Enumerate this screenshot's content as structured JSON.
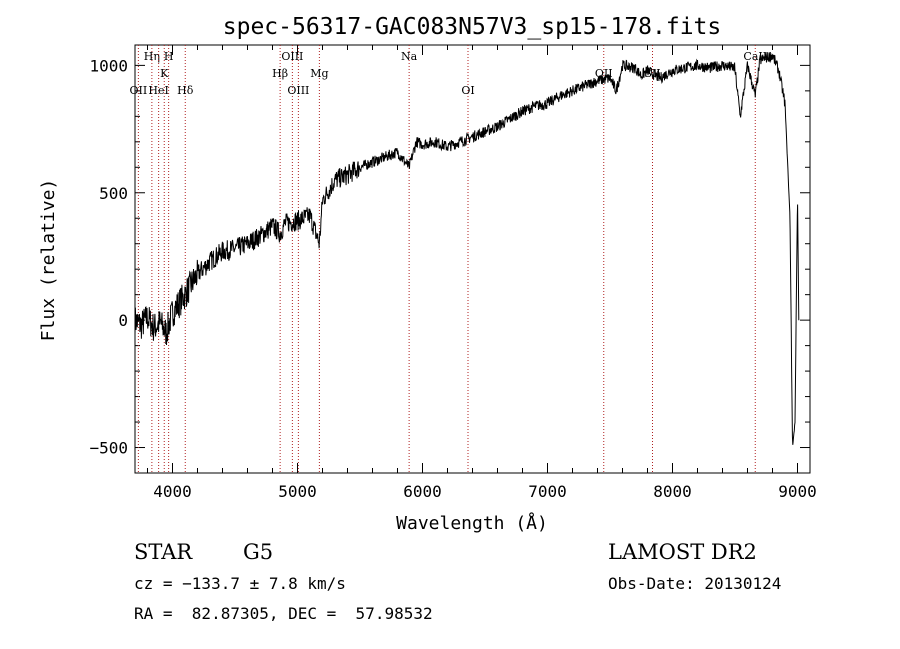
{
  "chart_data": {
    "type": "line",
    "title": "spec-56317-GAC083N57V3_sp15-178.fits",
    "xlabel": "Wavelength (Å)",
    "ylabel": "Flux (relative)",
    "xlim": [
      3700,
      9100
    ],
    "ylim": [
      -600,
      1080
    ],
    "x_ticks": [
      4000,
      5000,
      6000,
      7000,
      8000,
      9000
    ],
    "x_tick_labels": [
      "4000",
      "5000",
      "6000",
      "7000",
      "8000",
      "9000"
    ],
    "y_ticks": [
      -500,
      0,
      500,
      1000
    ],
    "y_tick_labels": [
      "−500",
      "0",
      "500",
      "1000"
    ],
    "grid": false,
    "line_color": "#000000",
    "marker_color": "#b02020",
    "series": [
      {
        "x": [
          3700,
          3750,
          3800,
          3850,
          3900,
          3950,
          4000,
          4100,
          4200,
          4300,
          4400,
          4500,
          4600,
          4700,
          4800,
          4861,
          4900,
          5000,
          5100,
          5175,
          5200,
          5300,
          5400,
          5500,
          5600,
          5700,
          5800,
          5893,
          5950,
          6000,
          6100,
          6200,
          6300,
          6400,
          6500,
          6600,
          6700,
          6800,
          6900,
          7000,
          7100,
          7200,
          7300,
          7400,
          7500,
          7550,
          7600,
          7700,
          7750,
          7800,
          7900,
          8000,
          8100,
          8200,
          8300,
          8400,
          8498,
          8542,
          8600,
          8662,
          8700,
          8750,
          8800,
          8850,
          8900,
          8940,
          8960,
          8980,
          9000,
          9010
        ],
        "y": [
          0,
          -20,
          10,
          -30,
          -10,
          -50,
          30,
          100,
          180,
          230,
          270,
          280,
          300,
          330,
          370,
          340,
          380,
          390,
          410,
          300,
          470,
          550,
          570,
          600,
          620,
          640,
          660,
          600,
          700,
          690,
          700,
          680,
          700,
          720,
          740,
          760,
          790,
          820,
          840,
          850,
          880,
          900,
          920,
          940,
          950,
          900,
          1000,
          990,
          960,
          980,
          950,
          980,
          990,
          1000,
          990,
          1000,
          990,
          800,
          1000,
          880,
          1020,
          1030,
          1040,
          980,
          850,
          400,
          -500,
          -400,
          500,
          0
        ]
      }
    ],
    "annotations": [
      {
        "label": "OII",
        "x": 3727
      },
      {
        "label": "Hη",
        "x": 3835
      },
      {
        "label": "HeI",
        "x": 3889
      },
      {
        "label": "K",
        "x": 3934
      },
      {
        "label": "H",
        "x": 3969
      },
      {
        "label": "Hδ",
        "x": 4102
      },
      {
        "label": "Hβ",
        "x": 4861
      },
      {
        "label": "OIII",
        "x": 4959
      },
      {
        "label": "OIII",
        "x": 5007
      },
      {
        "label": "Mg",
        "x": 5175
      },
      {
        "label": "Na",
        "x": 5893
      },
      {
        "label": "OI",
        "x": 6364
      },
      {
        "label": "OII",
        "x": 7450
      },
      {
        "label": "SII",
        "x": 7840
      },
      {
        "label": "CaII",
        "x": 8662
      }
    ]
  },
  "info": {
    "class_label": "STAR",
    "subclass": "G5",
    "survey": "LAMOST DR2",
    "redshift_text": "cz = −133.7 ± 7.8 km/s",
    "obs_date": "Obs-Date: 20130124",
    "coords_text": "RA =  82.87305, DEC =  57.98532"
  }
}
